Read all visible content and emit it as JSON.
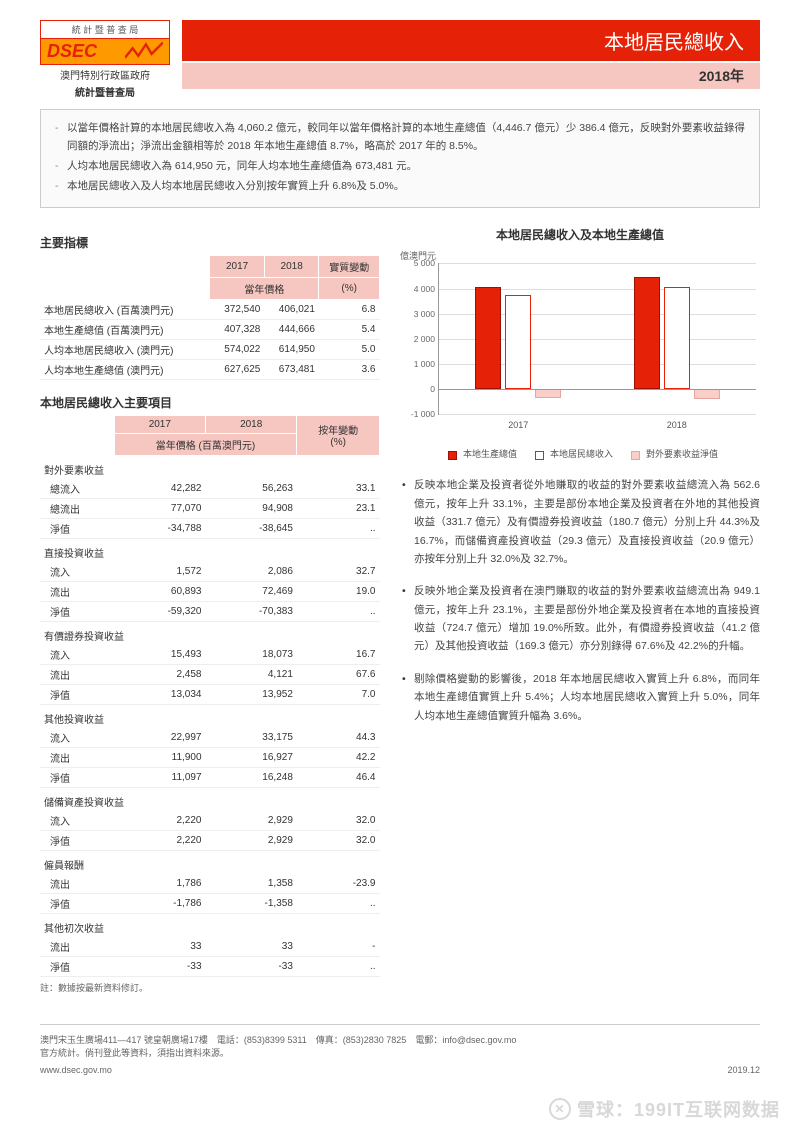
{
  "header": {
    "logo_top": "統 計 暨 普 查 局",
    "logo_dsec": "DSEC",
    "logo_sub1": "澳門特別行政區政府",
    "logo_sub2": "統計暨普查局",
    "title": "本地居民總收入",
    "year": "2018年"
  },
  "summary": [
    "以當年價格計算的本地居民總收入為 4,060.2 億元，較同年以當年價格計算的本地生產總值（4,446.7 億元）少 386.4 億元，反映對外要素收益錄得同額的淨流出；淨流出金額相等於 2018 年本地生產總值 8.7%，略高於 2017 年的 8.5%。",
    "人均本地居民總收入為 614,950 元，同年人均本地生產總值為 673,481 元。",
    "本地居民總收入及人均本地居民總收入分別按年實質上升 6.8%及 5.0%。"
  ],
  "table1": {
    "title": "主要指標",
    "h1": "2017",
    "h2": "2018",
    "h3": "實質變動",
    "sub": "當年價格",
    "pct": "(%)",
    "rows": [
      {
        "label": "本地居民總收入 (百萬澳門元)",
        "a": "372,540",
        "b": "406,021",
        "c": "6.8"
      },
      {
        "label": "本地生產總值 (百萬澳門元)",
        "a": "407,328",
        "b": "444,666",
        "c": "5.4"
      },
      {
        "label": "人均本地居民總收入 (澳門元)",
        "a": "574,022",
        "b": "614,950",
        "c": "5.0"
      },
      {
        "label": "人均本地生產總值 (澳門元)",
        "a": "627,625",
        "b": "673,481",
        "c": "3.6"
      }
    ]
  },
  "table2": {
    "title": "本地居民總收入主要項目",
    "h1": "2017",
    "h2": "2018",
    "h3": "按年變動",
    "sub": "當年價格 (百萬澳門元)",
    "pct": "(%)",
    "groups": [
      {
        "name": "對外要素收益",
        "rows": [
          {
            "label": "總流入",
            "a": "42,282",
            "b": "56,263",
            "c": "33.1"
          },
          {
            "label": "總流出",
            "a": "77,070",
            "b": "94,908",
            "c": "23.1"
          },
          {
            "label": "淨值",
            "a": "-34,788",
            "b": "-38,645",
            "c": ".."
          }
        ]
      },
      {
        "name": "直接投資收益",
        "rows": [
          {
            "label": "流入",
            "a": "1,572",
            "b": "2,086",
            "c": "32.7"
          },
          {
            "label": "流出",
            "a": "60,893",
            "b": "72,469",
            "c": "19.0"
          },
          {
            "label": "淨值",
            "a": "-59,320",
            "b": "-70,383",
            "c": ".."
          }
        ]
      },
      {
        "name": "有價證券投資收益",
        "rows": [
          {
            "label": "流入",
            "a": "15,493",
            "b": "18,073",
            "c": "16.7"
          },
          {
            "label": "流出",
            "a": "2,458",
            "b": "4,121",
            "c": "67.6"
          },
          {
            "label": "淨值",
            "a": "13,034",
            "b": "13,952",
            "c": "7.0"
          }
        ]
      },
      {
        "name": "其他投資收益",
        "rows": [
          {
            "label": "流入",
            "a": "22,997",
            "b": "33,175",
            "c": "44.3"
          },
          {
            "label": "流出",
            "a": "11,900",
            "b": "16,927",
            "c": "42.2"
          },
          {
            "label": "淨值",
            "a": "11,097",
            "b": "16,248",
            "c": "46.4"
          }
        ]
      },
      {
        "name": "儲備資產投資收益",
        "rows": [
          {
            "label": "流入",
            "a": "2,220",
            "b": "2,929",
            "c": "32.0"
          },
          {
            "label": "淨值",
            "a": "2,220",
            "b": "2,929",
            "c": "32.0"
          }
        ]
      },
      {
        "name": "僱員報酬",
        "rows": [
          {
            "label": "流出",
            "a": "1,786",
            "b": "1,358",
            "c": "-23.9"
          },
          {
            "label": "淨值",
            "a": "-1,786",
            "b": "-1,358",
            "c": ".."
          }
        ]
      },
      {
        "name": "其他初次收益",
        "rows": [
          {
            "label": "流出",
            "a": "33",
            "b": "33",
            "c": "-"
          },
          {
            "label": "淨值",
            "a": "-33",
            "b": "-33",
            "c": ".."
          }
        ]
      }
    ],
    "note": "註：數據按最新資料修訂。"
  },
  "chart": {
    "title": "本地居民總收入及本地生產總值",
    "ylabel": "億澳門元",
    "ymin": -1000,
    "ymax": 5000,
    "ystep": 1000,
    "categories": [
      "2017",
      "2018"
    ],
    "series": [
      {
        "name": "本地生產總值",
        "color": "#e52207",
        "border": "#a01105",
        "values": [
          4073,
          4447
        ]
      },
      {
        "name": "本地居民總收入",
        "color": "#ffffff",
        "border": "#e52207",
        "values": [
          3725,
          4060
        ]
      },
      {
        "name": "對外要素收益淨值",
        "color": "#f9cfca",
        "border": "#e8a59e",
        "values": [
          -348,
          -386
        ]
      }
    ],
    "legend": [
      "本地生產總值",
      "本地居民總收入",
      "對外要素收益淨值"
    ]
  },
  "bullets": [
    "反映本地企業及投資者從外地賺取的收益的對外要素收益總流入為 562.6 億元，按年上升 33.1%，主要是部份本地企業及投資者在外地的其他投資收益（331.7 億元）及有價證券投資收益（180.7 億元）分別上升 44.3%及 16.7%，而儲備資產投資收益（29.3 億元）及直接投資收益（20.9 億元）亦按年分別上升 32.0%及 32.7%。",
    "反映外地企業及投資者在澳門賺取的收益的對外要素收益總流出為 949.1 億元，按年上升 23.1%，主要是部份外地企業及投資者在本地的直接投資收益（724.7 億元）增加 19.0%所致。此外，有價證券投資收益（41.2 億元）及其他投資收益（169.3 億元）亦分別錄得 67.6%及 42.2%的升幅。",
    "剔除價格變動的影響後，2018 年本地居民總收入實質上升 6.8%，而同年本地生產總值實質上升 5.4%；人均本地居民總收入實質上升 5.0%，同年人均本地生產總值實質升幅為 3.6%。"
  ],
  "footer": {
    "addr": "澳門宋玉生廣場411—417 號皇朝廣場17樓　電話：(853)8399 5311　傳真：(853)2830 7825　電郵：info@dsec.gov.mo",
    "addr2": "官方統計。倘刊登此等資料，須指出資料來源。",
    "url": "www.dsec.gov.mo",
    "date": "2019.12"
  },
  "watermark": "雪球：199IT互联网数据"
}
